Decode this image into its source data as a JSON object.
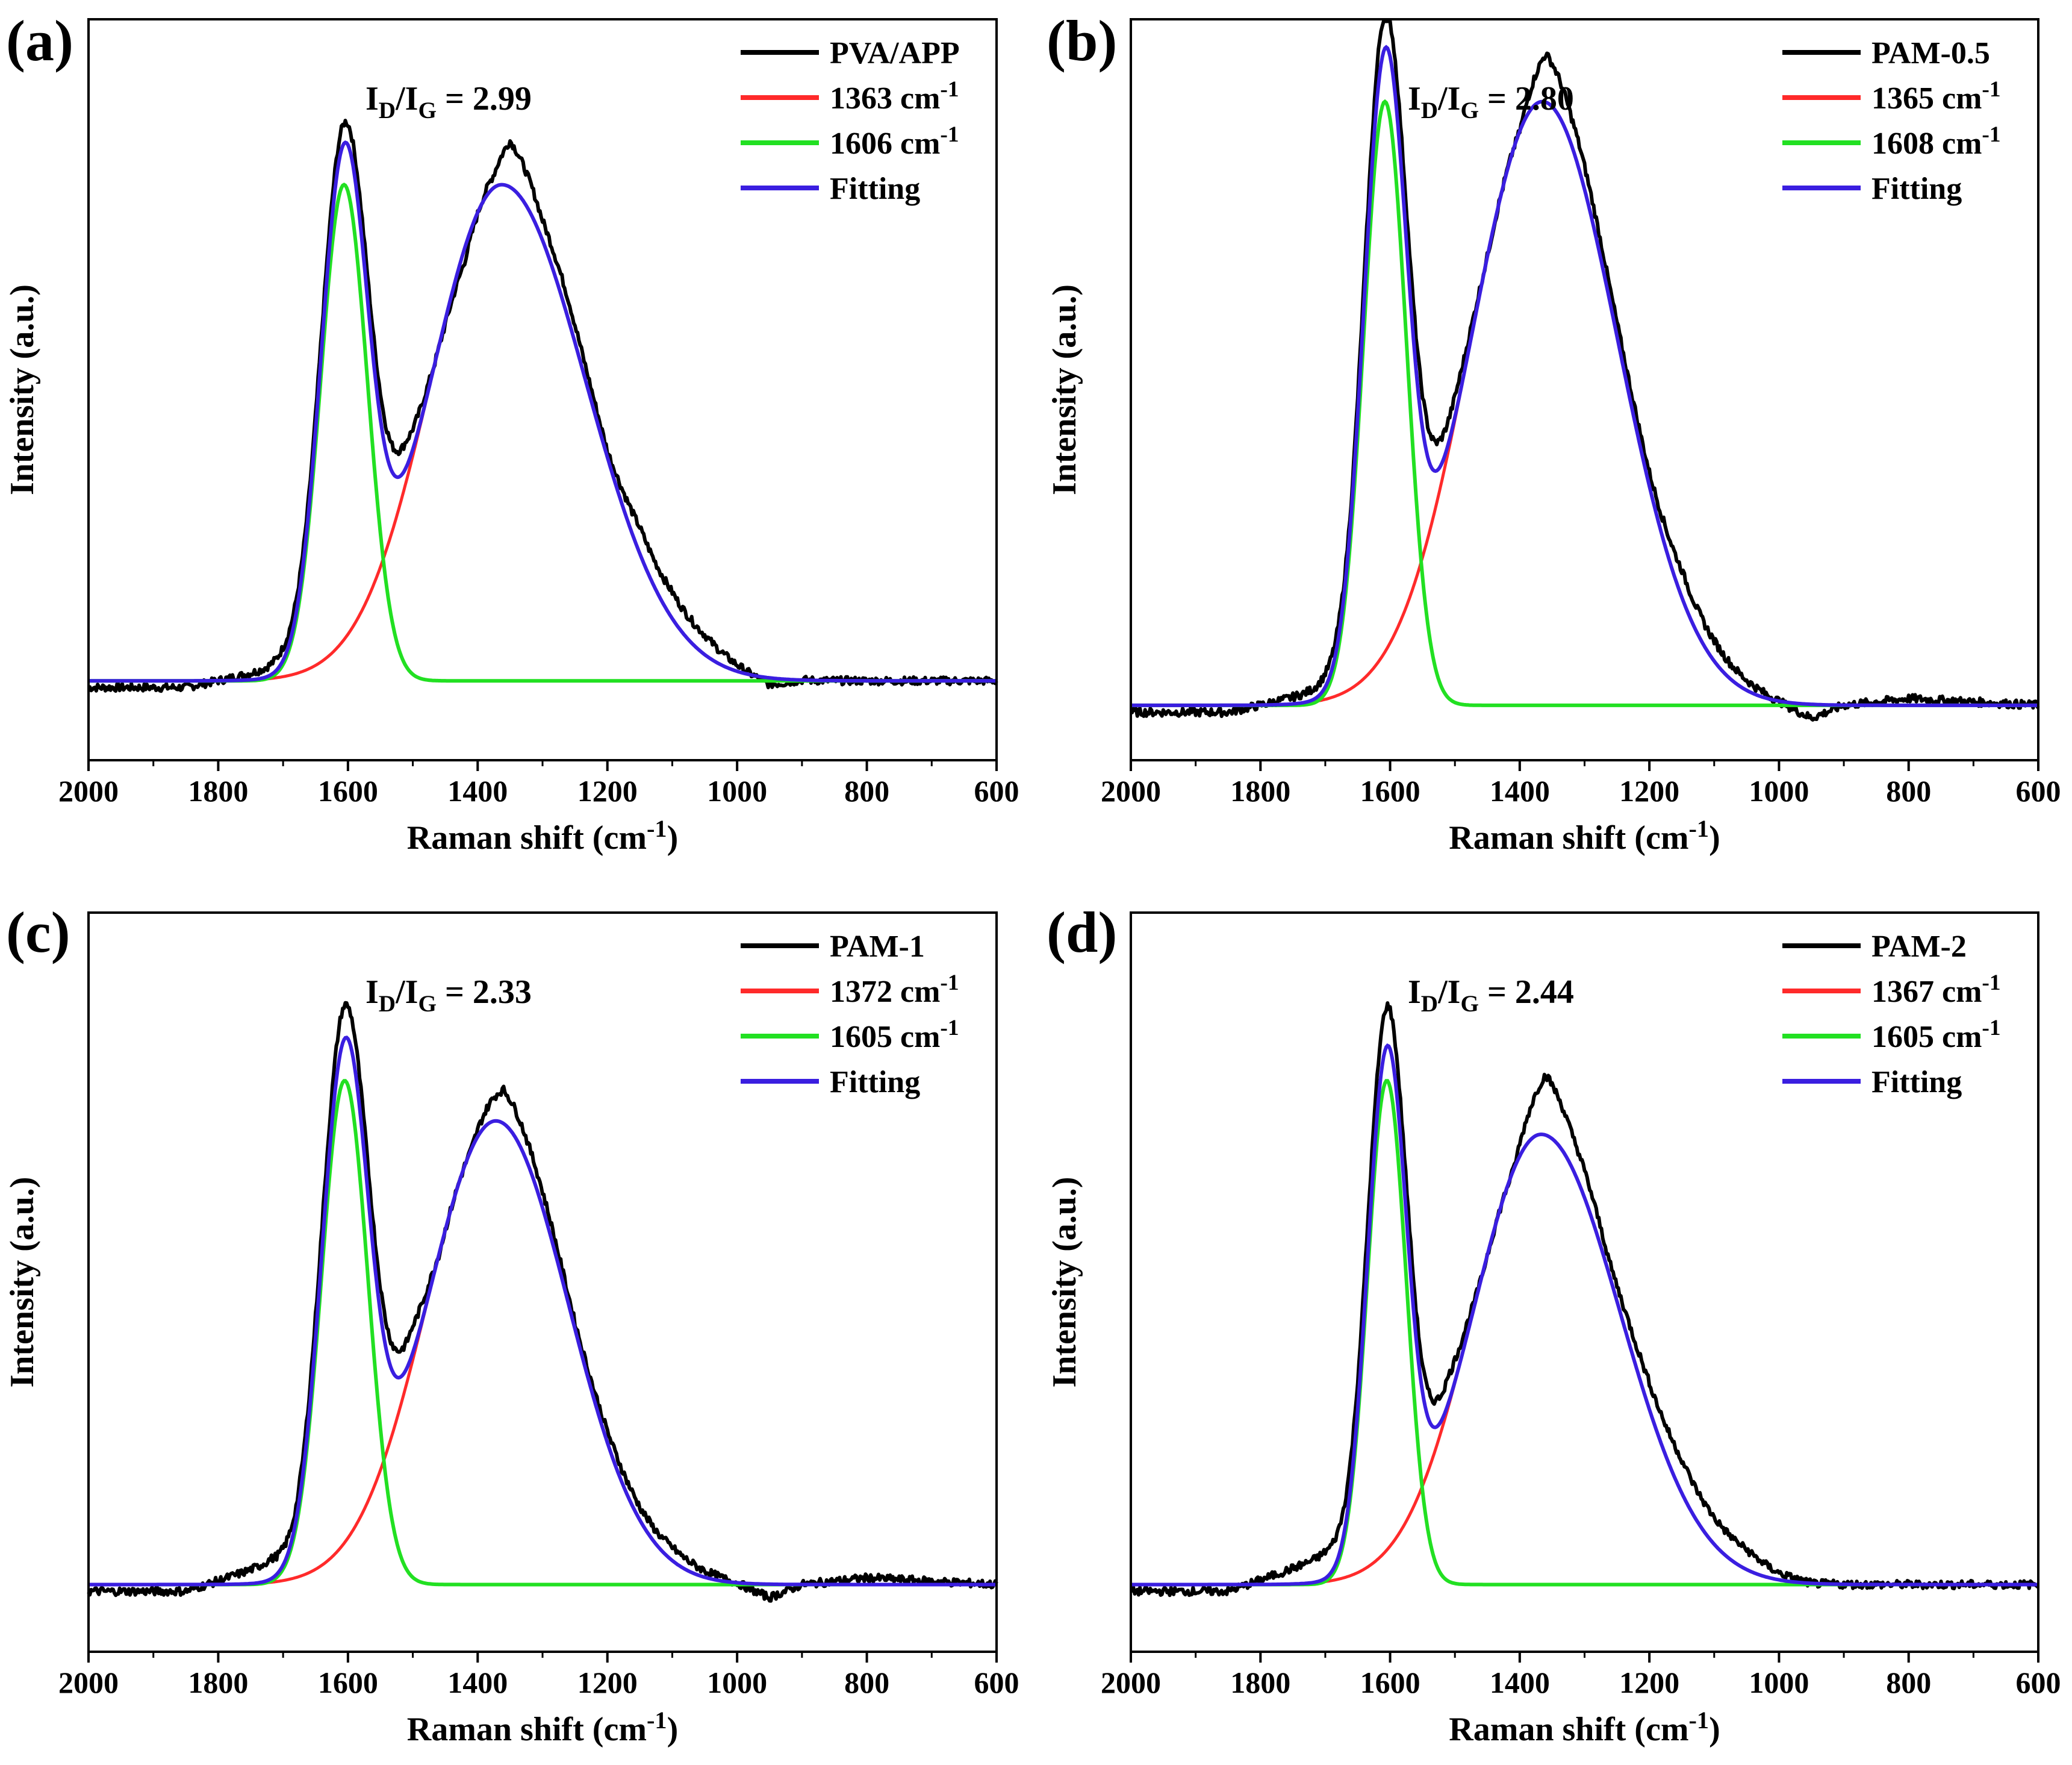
{
  "figure": {
    "background": "#ffffff"
  },
  "colors": {
    "measured": "#000000",
    "d_band": "#ff2a2a",
    "g_band": "#22e022",
    "fitting": "#3a1ee0"
  },
  "chart_data": [
    {
      "type": "line",
      "panel_label": "(a)",
      "sample": "PVA/APP",
      "ratio_text": {
        "prefix": "I",
        "sub1": "D",
        "mid": "/I",
        "sub2": "G",
        "suffix": " = 2.99"
      },
      "id_ig": 2.99,
      "xlabel": "Raman shift (cm⁻¹)",
      "ylabel": "Intensity (a.u.)",
      "xlim": [
        2000,
        600
      ],
      "x_reversed": true,
      "ylim": [
        -0.12,
        1.0
      ],
      "xticks": [
        2000,
        1800,
        1600,
        1400,
        1200,
        1000,
        800,
        600
      ],
      "legend": {
        "position": "top-right",
        "entries": [
          "PVA/APP",
          "1363 cm⁻¹",
          "1606 cm⁻¹",
          "Fitting"
        ]
      },
      "peaks": {
        "D": {
          "center": 1363,
          "sigma": 115,
          "amplitude": 0.75,
          "skew": 0.35
        },
        "G": {
          "center": 1606,
          "sigma": 36,
          "amplitude": 0.75
        }
      },
      "measured_offsets": {
        "x": [
          1850,
          1700,
          1660,
          1610,
          1550,
          1510,
          1465,
          1420,
          1375,
          1350,
          1300,
          1260,
          1200,
          1150,
          1100,
          1050,
          1000,
          950,
          900,
          800,
          600
        ],
        "dy": [
          -0.01,
          0.02,
          0.02,
          0.03,
          0.04,
          0.04,
          0.0,
          -0.02,
          0.02,
          0.07,
          0.03,
          0.03,
          0.01,
          0.04,
          0.04,
          0.03,
          0.01,
          -0.01,
          0.0,
          0.0,
          0.0
        ]
      },
      "measured_baseline": -0.01
    },
    {
      "type": "line",
      "panel_label": "(b)",
      "sample": "PAM-0.5",
      "ratio_text": {
        "prefix": "I",
        "sub1": "D",
        "mid": "/I",
        "sub2": "G",
        "suffix": " = 2.80"
      },
      "id_ig": 2.8,
      "xlabel": "Raman shift (cm⁻¹)",
      "ylabel": "Intensity (a.u.)",
      "xlim": [
        2000,
        600
      ],
      "x_reversed": true,
      "ylim": [
        -0.08,
        1.0
      ],
      "xticks": [
        2000,
        1800,
        1600,
        1400,
        1200,
        1000,
        800,
        600
      ],
      "legend": {
        "position": "top-right",
        "entries": [
          "PAM-0.5",
          "1365 cm⁻¹",
          "1608 cm⁻¹",
          "Fitting"
        ]
      },
      "peaks": {
        "D": {
          "center": 1365,
          "sigma": 112,
          "amplitude": 0.88,
          "skew": 0.1
        },
        "G": {
          "center": 1608,
          "sigma": 33,
          "amplitude": 0.88
        }
      },
      "measured_offsets": {
        "x": [
          1850,
          1700,
          1660,
          1615,
          1550,
          1500,
          1450,
          1400,
          1360,
          1320,
          1260,
          1200,
          1150,
          1100,
          1000,
          950,
          900,
          800,
          600
        ],
        "dy": [
          -0.01,
          0.02,
          0.02,
          0.05,
          0.05,
          0.03,
          0.0,
          0.0,
          0.07,
          0.04,
          0.02,
          0.02,
          0.04,
          0.03,
          0.0,
          -0.02,
          0.0,
          0.01,
          0.0
        ]
      },
      "measured_baseline": -0.01
    },
    {
      "type": "line",
      "panel_label": "(c)",
      "sample": "PAM-1",
      "ratio_text": {
        "prefix": "I",
        "sub1": "D",
        "mid": "/I",
        "sub2": "G",
        "suffix": " = 2.33"
      },
      "id_ig": 2.33,
      "xlabel": "Raman shift (cm⁻¹)",
      "ylabel": "Intensity (a.u.)",
      "xlim": [
        2000,
        600
      ],
      "x_reversed": true,
      "ylim": [
        -0.1,
        1.0
      ],
      "xticks": [
        2000,
        1800,
        1600,
        1400,
        1200,
        1000,
        800,
        600
      ],
      "legend": {
        "position": "top-right",
        "entries": [
          "PAM-1",
          "1372 cm⁻¹",
          "1605 cm⁻¹",
          "Fitting"
        ]
      },
      "peaks": {
        "D": {
          "center": 1372,
          "sigma": 108,
          "amplitude": 0.69,
          "skew": 0.1
        },
        "G": {
          "center": 1605,
          "sigma": 36,
          "amplitude": 0.75
        }
      },
      "measured_offsets": {
        "x": [
          1850,
          1720,
          1680,
          1610,
          1550,
          1500,
          1460,
          1410,
          1360,
          1320,
          1250,
          1180,
          1100,
          1050,
          1000,
          950,
          900,
          800,
          600
        ],
        "dy": [
          -0.01,
          0.03,
          0.02,
          0.05,
          0.04,
          0.04,
          0.0,
          0.0,
          0.05,
          0.03,
          0.01,
          0.02,
          0.02,
          0.01,
          0.0,
          -0.02,
          0.0,
          0.01,
          0.0
        ]
      },
      "measured_baseline": -0.01
    },
    {
      "type": "line",
      "panel_label": "(d)",
      "sample": "PAM-2",
      "ratio_text": {
        "prefix": "I",
        "sub1": "D",
        "mid": "/I",
        "sub2": "G",
        "suffix": " = 2.44"
      },
      "id_ig": 2.44,
      "xlabel": "Raman shift (cm⁻¹)",
      "ylabel": "Intensity (a.u.)",
      "xlim": [
        2000,
        600
      ],
      "x_reversed": true,
      "ylim": [
        -0.1,
        1.0
      ],
      "xticks": [
        2000,
        1800,
        1600,
        1400,
        1200,
        1000,
        800,
        600
      ],
      "legend": {
        "position": "top-right",
        "entries": [
          "PAM-2",
          "1367 cm⁻¹",
          "1605 cm⁻¹",
          "Fitting"
        ]
      },
      "peaks": {
        "D": {
          "center": 1367,
          "sigma": 110,
          "amplitude": 0.67,
          "skew": 0.3
        },
        "G": {
          "center": 1605,
          "sigma": 30,
          "amplitude": 0.75
        }
      },
      "measured_offsets": {
        "x": [
          1850,
          1700,
          1660,
          1605,
          1550,
          1510,
          1460,
          1410,
          1360,
          1320,
          1260,
          1200,
          1150,
          1100,
          1050,
          1000,
          950,
          900,
          800,
          600
        ],
        "dy": [
          -0.01,
          0.04,
          0.04,
          0.06,
          0.04,
          0.04,
          0.0,
          0.0,
          0.09,
          0.05,
          0.02,
          0.04,
          0.05,
          0.04,
          0.03,
          0.01,
          0.0,
          0.0,
          0.0,
          0.0
        ]
      },
      "measured_baseline": -0.01
    }
  ]
}
